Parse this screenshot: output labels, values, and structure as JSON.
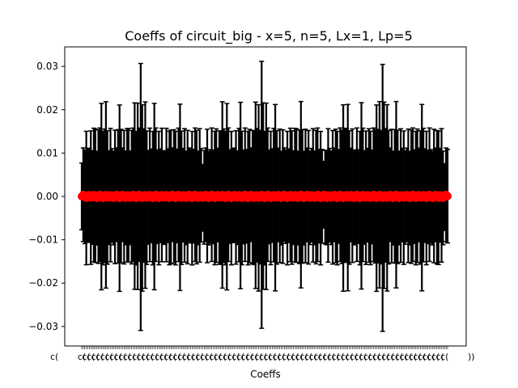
{
  "chart_data": {
    "type": "scatter",
    "title": "Coeffs of circuit_big - x=5, n=5, Lx=1, Lp=5",
    "xlabel": "Coeffs",
    "ylabel": "",
    "ylim": [
      -0.0345,
      0.0345
    ],
    "yticks": [
      -0.03,
      -0.02,
      -0.01,
      0.0,
      0.01,
      0.02,
      0.03
    ],
    "ytick_labels": [
      "−0.03",
      "−0.02",
      "−0.01",
      "0.00",
      "0.01",
      "0.02",
      "0.03"
    ],
    "n_points": 243,
    "xtick_label_text": "c(",
    "xtick_label_tail": "))",
    "grid": false,
    "marker_color": "#ff0000",
    "errorbar_color": "#000000",
    "series": [
      {
        "values_mean": 0.0,
        "error_pattern": [
          0.0077,
          0.0108,
          0.0108,
          0.0154,
          0.0108,
          0.0108,
          0.0154,
          0.0108,
          0.0154,
          0.0154,
          0.0108,
          0.0154,
          0.0154,
          0.0215,
          0.0154,
          0.0154,
          0.0215,
          0.0154,
          0.0108,
          0.0154,
          0.0108,
          0.0108,
          0.0154,
          0.0108,
          0.0154,
          0.0215,
          0.0154,
          0.0108,
          0.0154,
          0.0108,
          0.0154,
          0.0154,
          0.0108,
          0.0154,
          0.0154,
          0.0215,
          0.0154,
          0.0215,
          0.0154,
          0.0308,
          0.0215,
          0.0154,
          0.0215,
          0.0154,
          0.0108,
          0.0154,
          0.0108,
          0.0154,
          0.0215,
          0.0154,
          0.0108,
          0.0154,
          0.0108,
          0.0154,
          0.0108,
          0.0108,
          0.0154,
          0.0108,
          0.0154,
          0.0154,
          0.0108,
          0.0154,
          0.0154,
          0.0108,
          0.0154,
          0.0215,
          0.0154,
          0.0108,
          0.0154,
          0.0108,
          0.0154,
          0.0108,
          0.0108,
          0.0154,
          0.0108,
          0.0154,
          0.0154,
          0.0108,
          0.0154,
          0.0108
        ]
      }
    ]
  }
}
